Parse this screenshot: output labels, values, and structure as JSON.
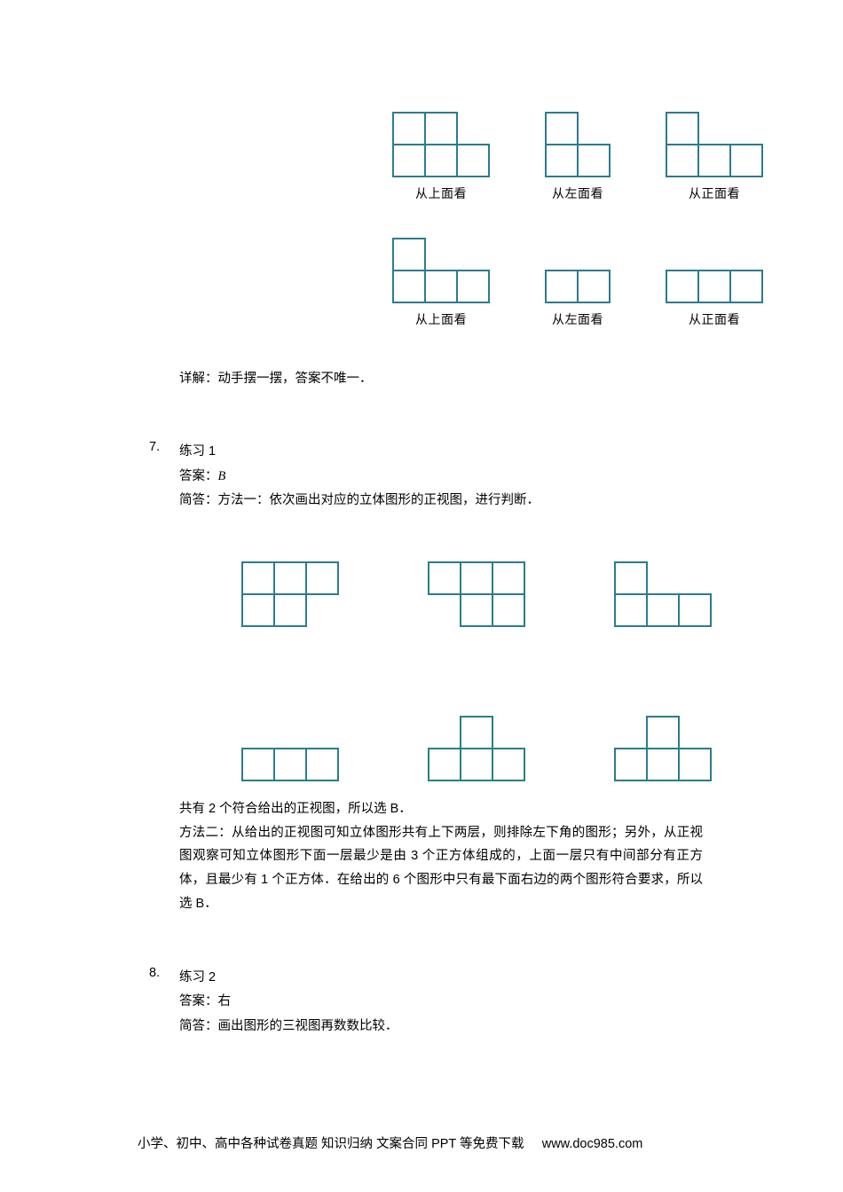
{
  "cell_size": 36,
  "stroke": "#2a7c8f",
  "stroke_width": 2,
  "views_block": {
    "rows": [
      {
        "items": [
          {
            "label": "从上面看",
            "cells": [
              [
                0,
                0
              ],
              [
                0,
                1
              ],
              [
                1,
                0
              ],
              [
                1,
                1
              ],
              [
                1,
                2
              ]
            ]
          },
          {
            "label": "从左面看",
            "cells": [
              [
                0,
                0
              ],
              [
                1,
                0
              ],
              [
                1,
                1
              ]
            ]
          },
          {
            "label": "从正面看",
            "cells": [
              [
                0,
                0
              ],
              [
                1,
                0
              ],
              [
                1,
                1
              ],
              [
                1,
                2
              ]
            ]
          }
        ]
      },
      {
        "items": [
          {
            "label": "从上面看",
            "cells": [
              [
                0,
                0
              ],
              [
                1,
                0
              ],
              [
                1,
                1
              ],
              [
                1,
                2
              ]
            ]
          },
          {
            "label": "从左面看",
            "cells": [
              [
                0,
                0
              ],
              [
                0,
                1
              ]
            ]
          },
          {
            "label": "从正面看",
            "cells": [
              [
                0,
                0
              ],
              [
                0,
                1
              ],
              [
                0,
                2
              ]
            ]
          }
        ]
      }
    ]
  },
  "explain_line": "详解：动手摆一摆，答案不唯一．",
  "p7": {
    "num": "7.",
    "title": "练习 1",
    "answer_line": "答案：",
    "answer_val": "B",
    "brief": "简答：方法一：依次画出对应的立体图形的正视图，进行判断．"
  },
  "grid6": {
    "rows": [
      [
        {
          "cells": [
            [
              0,
              0
            ],
            [
              0,
              1
            ],
            [
              0,
              2
            ],
            [
              1,
              0
            ],
            [
              1,
              1
            ]
          ]
        },
        {
          "cells": [
            [
              0,
              0
            ],
            [
              0,
              1
            ],
            [
              0,
              2
            ],
            [
              1,
              1
            ],
            [
              1,
              2
            ]
          ]
        },
        {
          "cells": [
            [
              0,
              0
            ],
            [
              1,
              0
            ],
            [
              1,
              1
            ],
            [
              1,
              2
            ]
          ]
        }
      ],
      [
        {
          "cells": [
            [
              0,
              0
            ],
            [
              0,
              1
            ],
            [
              0,
              2
            ]
          ]
        },
        {
          "cells": [
            [
              0,
              1
            ],
            [
              1,
              0
            ],
            [
              1,
              1
            ],
            [
              1,
              2
            ]
          ]
        },
        {
          "cells": [
            [
              0,
              1
            ],
            [
              1,
              0
            ],
            [
              1,
              1
            ],
            [
              1,
              2
            ]
          ]
        }
      ]
    ]
  },
  "concl1_a": "共有 2 个符合给出的正视图，所以选 ",
  "concl1_b": "B",
  "concl1_c": "．",
  "method2": "方法二：从给出的正视图可知立体图形共有上下两层，则排除左下角的图形；另外，从正视图观察可知立体图形下面一层最少是由 3 个正方体组成的，上面一层只有中间部分有正方体，且最少有 1 个正方体．在给出的 6 个图形中只有最下面右边的两个图形符合要求，所以选 ",
  "method2_b": "B",
  "method2_c": "．",
  "p8": {
    "num": "8.",
    "title": "练习 2",
    "answer_line": "答案：右",
    "brief": "简答：画出图形的三视图再数数比较．"
  },
  "footer_a": "小学、初中、高中各种试卷真题  知识归纳  文案合同  PPT 等免费下载 ",
  "footer_b": "www.doc985.com"
}
